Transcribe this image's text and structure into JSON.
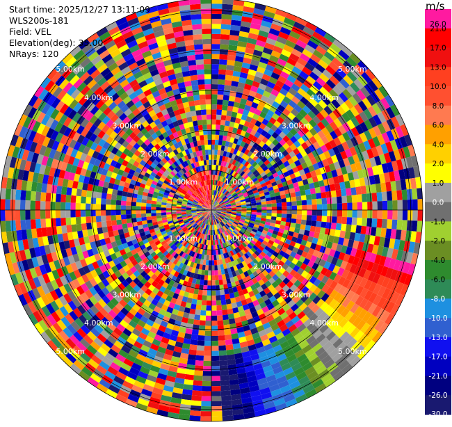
{
  "header": {
    "start_time": "Start time: 2025/12/27 13:11:09",
    "station": "WLS200s-181",
    "field": "Field: VEL",
    "elevation": "Elevation(deg): 35.00",
    "nrays": "NRays: 120"
  },
  "chart_data": {
    "type": "heatmap",
    "projection": "polar (PPI scan)",
    "field": "VEL",
    "nrays": 120,
    "range_rings_km": [
      "1.00km",
      "2.00km",
      "3.00km",
      "4.00km",
      "5.00km"
    ],
    "colorbar": {
      "unit": "m/s",
      "ticks": [
        "26.0",
        "21.0",
        "17.0",
        "13.0",
        "10.0",
        "8.0",
        "6.0",
        "4.0",
        "2.0",
        "1.0",
        "0.0",
        "-1.0",
        "-2.0",
        "-4.0",
        "-6.0",
        "-8.0",
        "-10.0",
        "-13.0",
        "-17.0",
        "-21.0",
        "-26.0",
        "-30.0"
      ],
      "colors": [
        "#ff1aa0",
        "#ff0000",
        "#f01010",
        "#ff4020",
        "#ff5030",
        "#ff7a50",
        "#ffa000",
        "#ffd000",
        "#ffff00",
        "#a0a0a0",
        "#707070",
        "#a0d030",
        "#6b8e23",
        "#2e8b2e",
        "#2e8b57",
        "#1e90e0",
        "#3060d0",
        "#1010f0",
        "#0000c0",
        "#000080",
        "#191970"
      ]
    }
  }
}
